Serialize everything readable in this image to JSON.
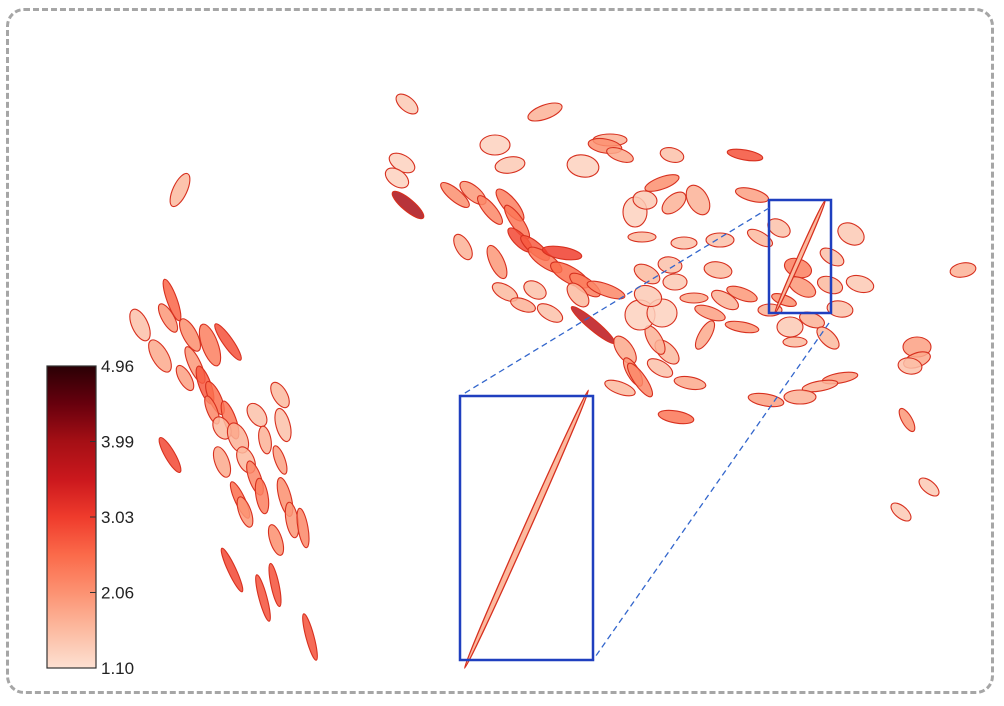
{
  "chart_data": {
    "type": "scatter",
    "marker": "ellipse",
    "title": "",
    "xlabel": "",
    "ylabel": "",
    "xlim": [
      0,
      1000
    ],
    "ylim": [
      0,
      700
    ],
    "grid": false,
    "axes_visible": false,
    "colorbar": {
      "min": 1.1,
      "max": 4.96,
      "ticks": [
        "4.96",
        "3.99",
        "3.03",
        "2.06",
        "1.10"
      ],
      "colormap": [
        "#fde0d2",
        "#fcbba1",
        "#fc9272",
        "#fb6a4a",
        "#ef3b2c",
        "#cb181d",
        "#a50f15",
        "#67000d",
        "#2a0005"
      ],
      "placement": "bottom-left"
    },
    "colors": {
      "edge": "#d7301f",
      "inset_box": "#1f3fbf",
      "zoom_line": "#3366cc",
      "frame": "#a6a6a6"
    },
    "zoom_inset": {
      "source_region": {
        "x": [
          769,
          831
        ],
        "y": [
          200,
          313
        ]
      },
      "highlighted_ellipse": {
        "x": 800,
        "y": 257,
        "rx": 62,
        "ry": 2.2,
        "angle": -66,
        "v": 1.6
      }
    },
    "points": [
      {
        "x": 180,
        "y": 190,
        "rx": 18,
        "ry": 7,
        "angle": -65,
        "v": 1.6
      },
      {
        "x": 172,
        "y": 300,
        "rx": 22,
        "ry": 5,
        "angle": 70,
        "v": 2.6
      },
      {
        "x": 140,
        "y": 325,
        "rx": 17,
        "ry": 8,
        "angle": 65,
        "v": 1.5
      },
      {
        "x": 168,
        "y": 318,
        "rx": 16,
        "ry": 6,
        "angle": 60,
        "v": 2.0
      },
      {
        "x": 190,
        "y": 335,
        "rx": 18,
        "ry": 7,
        "angle": 62,
        "v": 2.1
      },
      {
        "x": 210,
        "y": 345,
        "rx": 22,
        "ry": 8,
        "angle": 70,
        "v": 2.3
      },
      {
        "x": 228,
        "y": 342,
        "rx": 22,
        "ry": 5,
        "angle": 55,
        "v": 2.8
      },
      {
        "x": 160,
        "y": 356,
        "rx": 18,
        "ry": 8,
        "angle": 60,
        "v": 1.8
      },
      {
        "x": 195,
        "y": 365,
        "rx": 20,
        "ry": 6,
        "angle": 65,
        "v": 2.0
      },
      {
        "x": 185,
        "y": 378,
        "rx": 14,
        "ry": 6,
        "angle": 60,
        "v": 1.9
      },
      {
        "x": 205,
        "y": 385,
        "rx": 20,
        "ry": 6,
        "angle": 70,
        "v": 2.7
      },
      {
        "x": 215,
        "y": 398,
        "rx": 18,
        "ry": 6,
        "angle": 65,
        "v": 2.5
      },
      {
        "x": 212,
        "y": 410,
        "rx": 15,
        "ry": 5,
        "angle": 68,
        "v": 2.2
      },
      {
        "x": 230,
        "y": 420,
        "rx": 20,
        "ry": 6,
        "angle": 70,
        "v": 2.4
      },
      {
        "x": 170,
        "y": 455,
        "rx": 20,
        "ry": 5,
        "angle": 60,
        "v": 2.9
      },
      {
        "x": 222,
        "y": 428,
        "rx": 12,
        "ry": 8,
        "angle": 60,
        "v": 1.6
      },
      {
        "x": 238,
        "y": 438,
        "rx": 16,
        "ry": 9,
        "angle": 65,
        "v": 1.7
      },
      {
        "x": 257,
        "y": 415,
        "rx": 13,
        "ry": 8,
        "angle": 55,
        "v": 1.5
      },
      {
        "x": 280,
        "y": 395,
        "rx": 14,
        "ry": 7,
        "angle": 60,
        "v": 1.6
      },
      {
        "x": 283,
        "y": 425,
        "rx": 17,
        "ry": 7,
        "angle": 75,
        "v": 1.5
      },
      {
        "x": 265,
        "y": 440,
        "rx": 14,
        "ry": 6,
        "angle": 80,
        "v": 1.7
      },
      {
        "x": 222,
        "y": 462,
        "rx": 16,
        "ry": 7,
        "angle": 70,
        "v": 1.8
      },
      {
        "x": 246,
        "y": 460,
        "rx": 14,
        "ry": 8,
        "angle": 65,
        "v": 1.6
      },
      {
        "x": 255,
        "y": 478,
        "rx": 18,
        "ry": 6,
        "angle": 70,
        "v": 2.2
      },
      {
        "x": 280,
        "y": 460,
        "rx": 15,
        "ry": 5,
        "angle": 70,
        "v": 1.9
      },
      {
        "x": 262,
        "y": 496,
        "rx": 18,
        "ry": 6,
        "angle": 80,
        "v": 2.3
      },
      {
        "x": 240,
        "y": 500,
        "rx": 20,
        "ry": 5,
        "angle": 65,
        "v": 2.5
      },
      {
        "x": 245,
        "y": 512,
        "rx": 16,
        "ry": 6,
        "angle": 70,
        "v": 2.0
      },
      {
        "x": 285,
        "y": 497,
        "rx": 20,
        "ry": 6,
        "angle": 75,
        "v": 2.1
      },
      {
        "x": 292,
        "y": 520,
        "rx": 18,
        "ry": 6,
        "angle": 80,
        "v": 2.0
      },
      {
        "x": 303,
        "y": 528,
        "rx": 20,
        "ry": 5,
        "angle": 80,
        "v": 2.2
      },
      {
        "x": 276,
        "y": 540,
        "rx": 16,
        "ry": 6,
        "angle": 72,
        "v": 2.1
      },
      {
        "x": 232,
        "y": 570,
        "rx": 24,
        "ry": 4,
        "angle": 65,
        "v": 2.9
      },
      {
        "x": 263,
        "y": 598,
        "rx": 24,
        "ry": 4,
        "angle": 75,
        "v": 2.8
      },
      {
        "x": 275,
        "y": 585,
        "rx": 22,
        "ry": 4,
        "angle": 78,
        "v": 2.8
      },
      {
        "x": 310,
        "y": 637,
        "rx": 24,
        "ry": 4,
        "angle": 75,
        "v": 2.8
      },
      {
        "x": 407,
        "y": 104,
        "rx": 13,
        "ry": 7,
        "angle": 40,
        "v": 1.4
      },
      {
        "x": 545,
        "y": 112,
        "rx": 18,
        "ry": 7,
        "angle": -20,
        "v": 1.7
      },
      {
        "x": 402,
        "y": 163,
        "rx": 14,
        "ry": 8,
        "angle": 30,
        "v": 1.3
      },
      {
        "x": 397,
        "y": 178,
        "rx": 13,
        "ry": 8,
        "angle": 35,
        "v": 1.3
      },
      {
        "x": 408,
        "y": 205,
        "rx": 20,
        "ry": 6,
        "angle": 40,
        "v": 3.9
      },
      {
        "x": 455,
        "y": 195,
        "rx": 18,
        "ry": 6,
        "angle": 40,
        "v": 2.1
      },
      {
        "x": 473,
        "y": 193,
        "rx": 16,
        "ry": 7,
        "angle": 40,
        "v": 2.0
      },
      {
        "x": 490,
        "y": 210,
        "rx": 18,
        "ry": 6,
        "angle": 50,
        "v": 2.2
      },
      {
        "x": 510,
        "y": 205,
        "rx": 20,
        "ry": 7,
        "angle": 50,
        "v": 2.3
      },
      {
        "x": 517,
        "y": 222,
        "rx": 20,
        "ry": 6,
        "angle": 55,
        "v": 2.4
      },
      {
        "x": 495,
        "y": 145,
        "rx": 15,
        "ry": 10,
        "angle": 0,
        "v": 1.3
      },
      {
        "x": 510,
        "y": 165,
        "rx": 15,
        "ry": 8,
        "angle": -10,
        "v": 1.4
      },
      {
        "x": 583,
        "y": 166,
        "rx": 16,
        "ry": 11,
        "angle": 10,
        "v": 1.3
      },
      {
        "x": 610,
        "y": 140,
        "rx": 17,
        "ry": 6,
        "angle": 0,
        "v": 1.7
      },
      {
        "x": 605,
        "y": 146,
        "rx": 17,
        "ry": 7,
        "angle": 10,
        "v": 2.1
      },
      {
        "x": 620,
        "y": 155,
        "rx": 14,
        "ry": 6,
        "angle": 20,
        "v": 1.8
      },
      {
        "x": 672,
        "y": 155,
        "rx": 12,
        "ry": 7,
        "angle": 15,
        "v": 1.5
      },
      {
        "x": 745,
        "y": 155,
        "rx": 18,
        "ry": 5,
        "angle": 10,
        "v": 2.8
      },
      {
        "x": 463,
        "y": 247,
        "rx": 14,
        "ry": 7,
        "angle": 60,
        "v": 1.7
      },
      {
        "x": 497,
        "y": 262,
        "rx": 18,
        "ry": 7,
        "angle": 65,
        "v": 2.0
      },
      {
        "x": 520,
        "y": 240,
        "rx": 16,
        "ry": 6,
        "angle": 45,
        "v": 2.9
      },
      {
        "x": 535,
        "y": 248,
        "rx": 18,
        "ry": 6,
        "angle": 40,
        "v": 2.7
      },
      {
        "x": 545,
        "y": 260,
        "rx": 20,
        "ry": 7,
        "angle": 35,
        "v": 2.4
      },
      {
        "x": 562,
        "y": 253,
        "rx": 20,
        "ry": 6,
        "angle": 10,
        "v": 3.0
      },
      {
        "x": 570,
        "y": 275,
        "rx": 22,
        "ry": 8,
        "angle": 30,
        "v": 2.5
      },
      {
        "x": 585,
        "y": 285,
        "rx": 18,
        "ry": 7,
        "angle": 35,
        "v": 2.3
      },
      {
        "x": 578,
        "y": 295,
        "rx": 14,
        "ry": 8,
        "angle": 50,
        "v": 1.6
      },
      {
        "x": 606,
        "y": 290,
        "rx": 20,
        "ry": 6,
        "angle": 20,
        "v": 2.2
      },
      {
        "x": 535,
        "y": 290,
        "rx": 12,
        "ry": 8,
        "angle": 30,
        "v": 1.5
      },
      {
        "x": 505,
        "y": 292,
        "rx": 14,
        "ry": 7,
        "angle": 30,
        "v": 1.6
      },
      {
        "x": 523,
        "y": 305,
        "rx": 13,
        "ry": 6,
        "angle": 20,
        "v": 1.7
      },
      {
        "x": 550,
        "y": 313,
        "rx": 14,
        "ry": 7,
        "angle": 30,
        "v": 1.5
      },
      {
        "x": 593,
        "y": 325,
        "rx": 28,
        "ry": 5,
        "angle": 40,
        "v": 3.7
      },
      {
        "x": 625,
        "y": 350,
        "rx": 16,
        "ry": 8,
        "angle": 55,
        "v": 1.8
      },
      {
        "x": 633,
        "y": 372,
        "rx": 16,
        "ry": 6,
        "angle": 60,
        "v": 2.0
      },
      {
        "x": 640,
        "y": 380,
        "rx": 20,
        "ry": 6,
        "angle": 55,
        "v": 2.2
      },
      {
        "x": 620,
        "y": 388,
        "rx": 16,
        "ry": 6,
        "angle": 20,
        "v": 1.6
      },
      {
        "x": 660,
        "y": 368,
        "rx": 14,
        "ry": 7,
        "angle": 30,
        "v": 1.5
      },
      {
        "x": 667,
        "y": 352,
        "rx": 15,
        "ry": 8,
        "angle": 45,
        "v": 1.6
      },
      {
        "x": 655,
        "y": 340,
        "rx": 16,
        "ry": 7,
        "angle": 60,
        "v": 1.7
      },
      {
        "x": 690,
        "y": 383,
        "rx": 16,
        "ry": 6,
        "angle": 10,
        "v": 1.8
      },
      {
        "x": 676,
        "y": 417,
        "rx": 18,
        "ry": 6,
        "angle": 10,
        "v": 2.4
      },
      {
        "x": 640,
        "y": 315,
        "rx": 15,
        "ry": 15,
        "angle": 0,
        "v": 1.3
      },
      {
        "x": 662,
        "y": 313,
        "rx": 15,
        "ry": 14,
        "angle": 0,
        "v": 1.3
      },
      {
        "x": 648,
        "y": 296,
        "rx": 14,
        "ry": 10,
        "angle": 20,
        "v": 1.4
      },
      {
        "x": 675,
        "y": 282,
        "rx": 12,
        "ry": 8,
        "angle": 0,
        "v": 1.4
      },
      {
        "x": 647,
        "y": 274,
        "rx": 14,
        "ry": 8,
        "angle": 30,
        "v": 1.6
      },
      {
        "x": 670,
        "y": 265,
        "rx": 12,
        "ry": 8,
        "angle": 10,
        "v": 1.5
      },
      {
        "x": 684,
        "y": 243,
        "rx": 13,
        "ry": 6,
        "angle": 0,
        "v": 1.5
      },
      {
        "x": 635,
        "y": 212,
        "rx": 12,
        "ry": 15,
        "angle": 0,
        "v": 1.3
      },
      {
        "x": 645,
        "y": 200,
        "rx": 12,
        "ry": 9,
        "angle": 10,
        "v": 1.4
      },
      {
        "x": 662,
        "y": 183,
        "rx": 18,
        "ry": 6,
        "angle": -20,
        "v": 2.1
      },
      {
        "x": 674,
        "y": 203,
        "rx": 14,
        "ry": 8,
        "angle": -40,
        "v": 1.7
      },
      {
        "x": 698,
        "y": 200,
        "rx": 16,
        "ry": 10,
        "angle": 60,
        "v": 1.7
      },
      {
        "x": 642,
        "y": 237,
        "rx": 14,
        "ry": 5,
        "angle": 0,
        "v": 1.6
      },
      {
        "x": 720,
        "y": 240,
        "rx": 14,
        "ry": 7,
        "angle": 0,
        "v": 1.5
      },
      {
        "x": 718,
        "y": 270,
        "rx": 14,
        "ry": 8,
        "angle": 10,
        "v": 1.6
      },
      {
        "x": 694,
        "y": 298,
        "rx": 14,
        "ry": 5,
        "angle": 0,
        "v": 1.8
      },
      {
        "x": 710,
        "y": 313,
        "rx": 16,
        "ry": 6,
        "angle": 20,
        "v": 1.9
      },
      {
        "x": 725,
        "y": 300,
        "rx": 15,
        "ry": 7,
        "angle": 30,
        "v": 1.7
      },
      {
        "x": 742,
        "y": 294,
        "rx": 16,
        "ry": 6,
        "angle": 20,
        "v": 2.0
      },
      {
        "x": 705,
        "y": 335,
        "rx": 16,
        "ry": 6,
        "angle": -60,
        "v": 1.8
      },
      {
        "x": 742,
        "y": 327,
        "rx": 17,
        "ry": 5,
        "angle": 10,
        "v": 2.0
      },
      {
        "x": 752,
        "y": 195,
        "rx": 17,
        "ry": 6,
        "angle": 15,
        "v": 1.9
      },
      {
        "x": 760,
        "y": 238,
        "rx": 14,
        "ry": 6,
        "angle": 30,
        "v": 1.6
      },
      {
        "x": 779,
        "y": 228,
        "rx": 12,
        "ry": 8,
        "angle": 30,
        "v": 1.5
      },
      {
        "x": 851,
        "y": 234,
        "rx": 14,
        "ry": 10,
        "angle": 30,
        "v": 1.4
      },
      {
        "x": 832,
        "y": 257,
        "rx": 13,
        "ry": 7,
        "angle": 30,
        "v": 1.5
      },
      {
        "x": 860,
        "y": 284,
        "rx": 14,
        "ry": 8,
        "angle": 15,
        "v": 1.4
      },
      {
        "x": 830,
        "y": 285,
        "rx": 13,
        "ry": 8,
        "angle": 20,
        "v": 1.6
      },
      {
        "x": 798,
        "y": 268,
        "rx": 14,
        "ry": 9,
        "angle": 20,
        "v": 2.3
      },
      {
        "x": 802,
        "y": 287,
        "rx": 15,
        "ry": 8,
        "angle": 30,
        "v": 2.0
      },
      {
        "x": 784,
        "y": 300,
        "rx": 13,
        "ry": 5,
        "angle": 20,
        "v": 2.1
      },
      {
        "x": 840,
        "y": 309,
        "rx": 13,
        "ry": 8,
        "angle": 10,
        "v": 1.5
      },
      {
        "x": 812,
        "y": 320,
        "rx": 13,
        "ry": 7,
        "angle": 20,
        "v": 1.7
      },
      {
        "x": 790,
        "y": 327,
        "rx": 13,
        "ry": 10,
        "angle": 0,
        "v": 1.4
      },
      {
        "x": 795,
        "y": 342,
        "rx": 12,
        "ry": 5,
        "angle": 0,
        "v": 1.6
      },
      {
        "x": 828,
        "y": 338,
        "rx": 14,
        "ry": 7,
        "angle": 45,
        "v": 1.6
      },
      {
        "x": 770,
        "y": 310,
        "rx": 12,
        "ry": 6,
        "angle": 0,
        "v": 1.7
      },
      {
        "x": 840,
        "y": 378,
        "rx": 18,
        "ry": 5,
        "angle": -10,
        "v": 1.9
      },
      {
        "x": 820,
        "y": 386,
        "rx": 18,
        "ry": 5,
        "angle": -10,
        "v": 1.7
      },
      {
        "x": 800,
        "y": 397,
        "rx": 16,
        "ry": 7,
        "angle": 0,
        "v": 1.7
      },
      {
        "x": 766,
        "y": 400,
        "rx": 18,
        "ry": 6,
        "angle": 10,
        "v": 1.9
      },
      {
        "x": 963,
        "y": 270,
        "rx": 13,
        "ry": 7,
        "angle": -10,
        "v": 1.7
      },
      {
        "x": 917,
        "y": 347,
        "rx": 14,
        "ry": 10,
        "angle": 0,
        "v": 1.9
      },
      {
        "x": 917,
        "y": 360,
        "rx": 14,
        "ry": 7,
        "angle": -20,
        "v": 1.8
      },
      {
        "x": 910,
        "y": 366,
        "rx": 12,
        "ry": 8,
        "angle": 10,
        "v": 1.5
      },
      {
        "x": 907,
        "y": 420,
        "rx": 13,
        "ry": 5,
        "angle": 60,
        "v": 2.0
      },
      {
        "x": 929,
        "y": 487,
        "rx": 12,
        "ry": 6,
        "angle": 40,
        "v": 1.4
      },
      {
        "x": 901,
        "y": 512,
        "rx": 12,
        "ry": 6,
        "angle": 40,
        "v": 1.4
      }
    ]
  }
}
